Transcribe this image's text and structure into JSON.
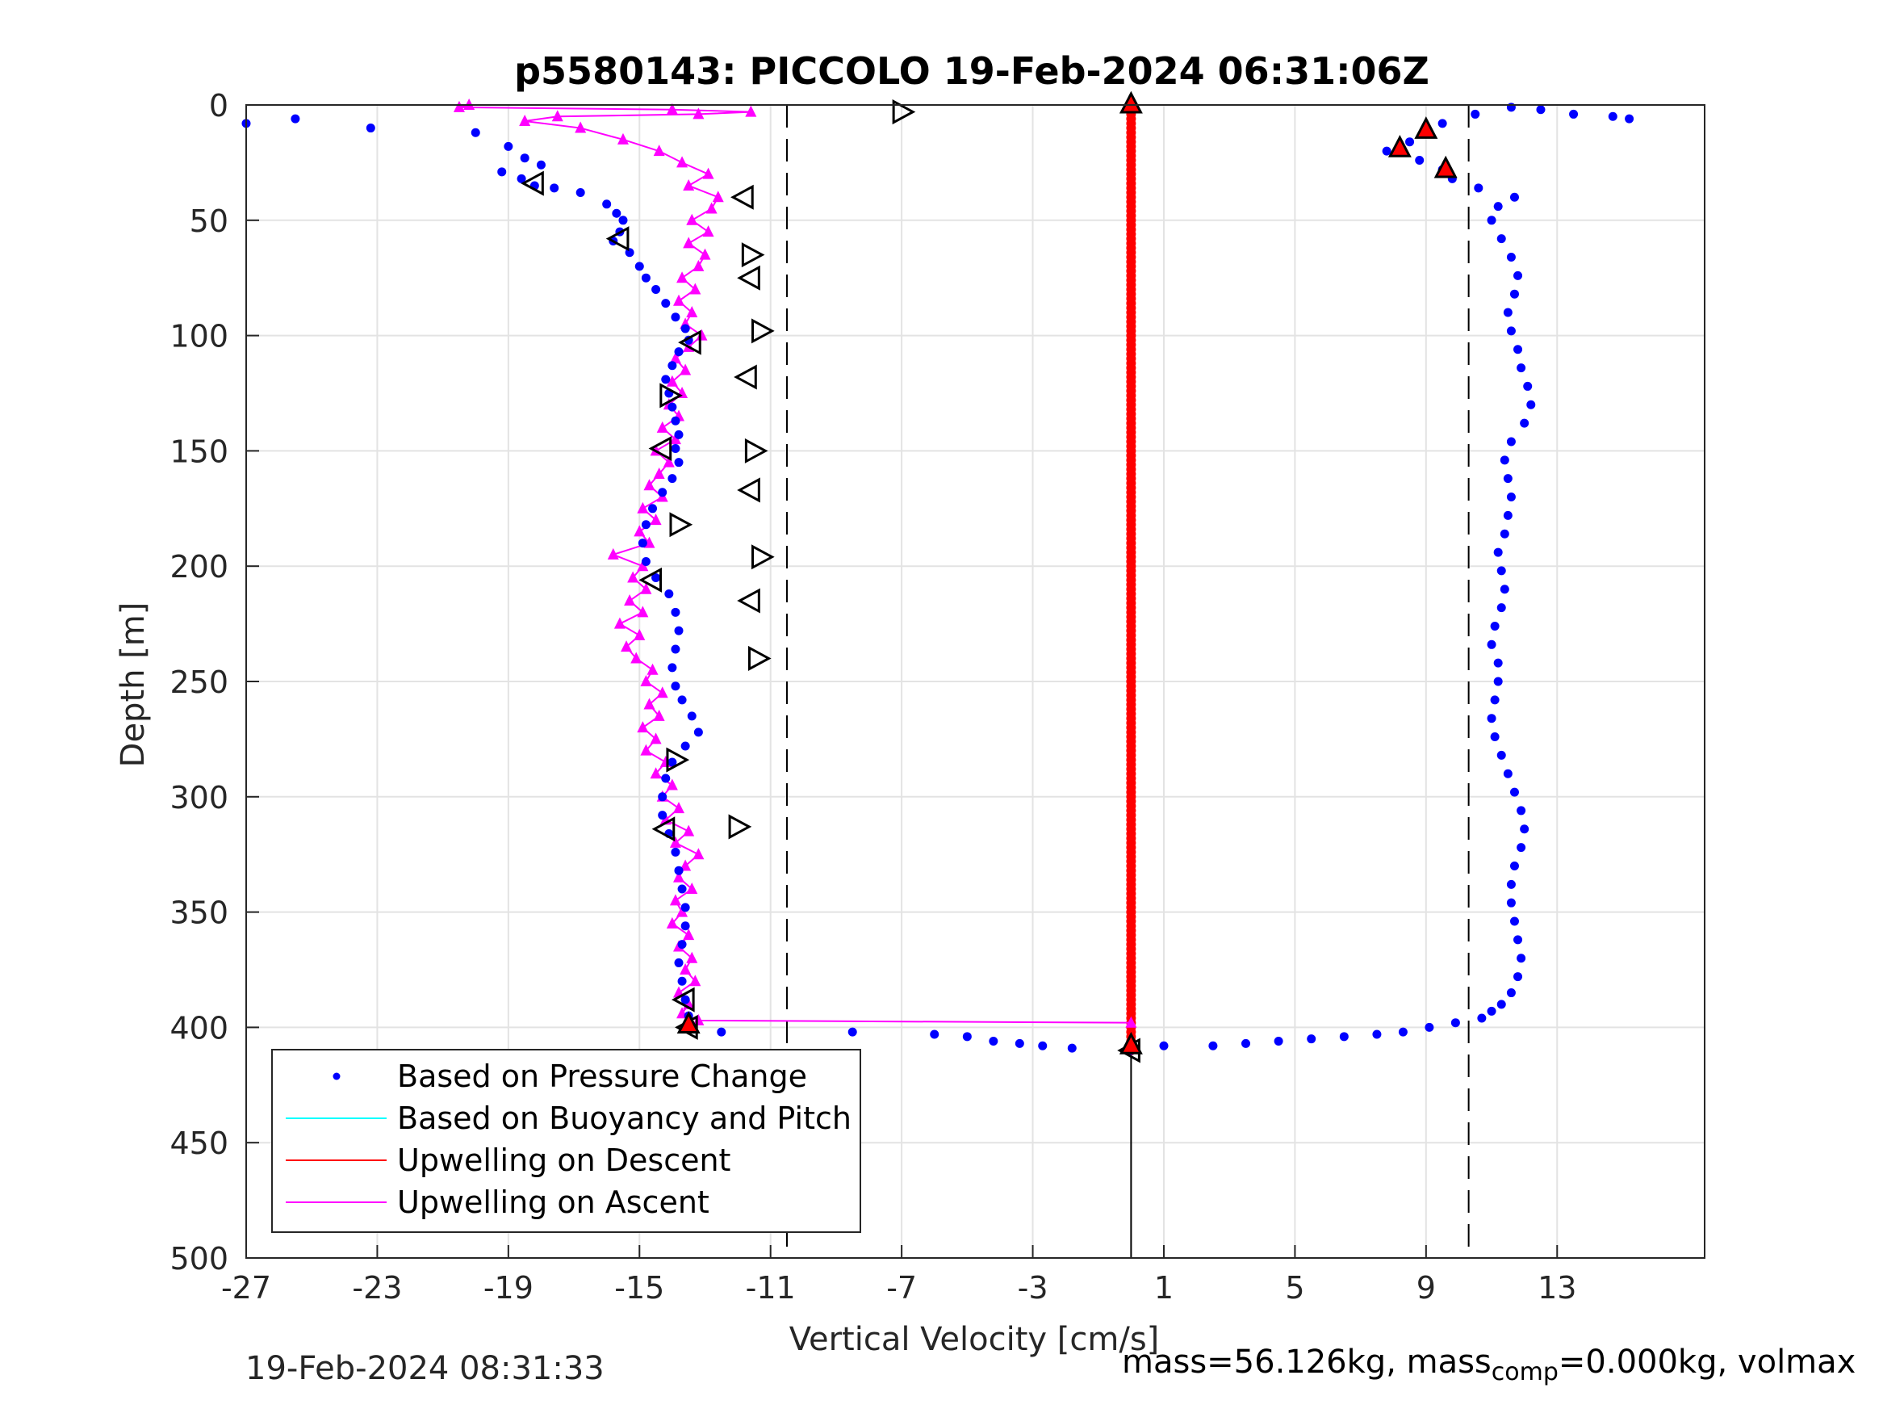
{
  "chart_data": {
    "type": "scatter",
    "title": "p5580143: PICCOLO 19-Feb-2024 06:31:06Z",
    "xlabel": "Vertical Velocity [cm/s]",
    "ylabel": "Depth [m]",
    "xlim": [
      -27,
      17.5
    ],
    "ylim": [
      0,
      500
    ],
    "y_reversed": true,
    "xticks": [
      "-27",
      "-23",
      "-19",
      "-15",
      "-11",
      "-7",
      "-3",
      "1",
      "5",
      "9",
      "13"
    ],
    "xtick_values": [
      -27,
      -23,
      -19,
      -15,
      -11,
      -7,
      -3,
      1,
      5,
      9,
      13
    ],
    "yticks": [
      "0",
      "50",
      "100",
      "150",
      "200",
      "250",
      "300",
      "350",
      "400",
      "450",
      "500"
    ],
    "ytick_values": [
      0,
      50,
      100,
      150,
      200,
      250,
      300,
      350,
      400,
      450,
      500
    ],
    "grid": true,
    "legend_position": "bottom-left",
    "reference_lines": [
      {
        "x": -10.5,
        "style": "dashed"
      },
      {
        "x": 10.3,
        "style": "dashed"
      },
      {
        "x": 0,
        "style": "solid",
        "ylim": [
          400,
          500
        ]
      }
    ],
    "series": [
      {
        "name": "Based on Pressure Change",
        "color": "#0000ff",
        "marker": "dot",
        "descent": [
          [
            -27,
            8
          ],
          [
            -25.5,
            6
          ],
          [
            -23.2,
            10
          ],
          [
            -20,
            12
          ],
          [
            -19,
            18
          ],
          [
            -18.5,
            23
          ],
          [
            -18,
            26
          ],
          [
            -19.2,
            29
          ],
          [
            -18.6,
            32
          ],
          [
            -18.2,
            35
          ],
          [
            -17.6,
            36
          ],
          [
            -16.8,
            38
          ],
          [
            -16,
            43
          ],
          [
            -15.7,
            47
          ],
          [
            -15.5,
            50
          ],
          [
            -15.6,
            55
          ],
          [
            -15.8,
            59
          ],
          [
            -15.3,
            64
          ],
          [
            -15,
            70
          ],
          [
            -14.8,
            75
          ],
          [
            -14.5,
            80
          ],
          [
            -14.2,
            86
          ],
          [
            -13.9,
            92
          ],
          [
            -13.6,
            97
          ],
          [
            -13.5,
            102
          ],
          [
            -13.8,
            107
          ],
          [
            -14,
            113
          ],
          [
            -14.2,
            119
          ],
          [
            -14.1,
            125
          ],
          [
            -14,
            131
          ],
          [
            -13.9,
            137
          ],
          [
            -13.8,
            143
          ],
          [
            -13.9,
            149
          ],
          [
            -13.8,
            155
          ],
          [
            -14,
            162
          ],
          [
            -14.3,
            168
          ],
          [
            -14.6,
            175
          ],
          [
            -14.8,
            182
          ],
          [
            -14.9,
            190
          ],
          [
            -14.8,
            198
          ],
          [
            -14.5,
            205
          ],
          [
            -14.1,
            212
          ],
          [
            -13.9,
            220
          ],
          [
            -13.8,
            228
          ],
          [
            -13.9,
            236
          ],
          [
            -14,
            244
          ],
          [
            -13.9,
            252
          ],
          [
            -13.7,
            258
          ],
          [
            -13.4,
            265
          ],
          [
            -13.2,
            272
          ],
          [
            -13.6,
            278
          ],
          [
            -14,
            285
          ],
          [
            -14.2,
            292
          ],
          [
            -14.3,
            300
          ],
          [
            -14.3,
            308
          ],
          [
            -14.1,
            316
          ],
          [
            -13.9,
            324
          ],
          [
            -13.8,
            332
          ],
          [
            -13.7,
            340
          ],
          [
            -13.6,
            348
          ],
          [
            -13.6,
            356
          ],
          [
            -13.7,
            364
          ],
          [
            -13.8,
            372
          ],
          [
            -13.7,
            380
          ],
          [
            -13.6,
            388
          ],
          [
            -13.5,
            395
          ],
          [
            -13.4,
            400
          ],
          [
            -12.5,
            402
          ],
          [
            -8.5,
            402
          ],
          [
            -6,
            403
          ],
          [
            -5,
            404
          ],
          [
            -4.2,
            406
          ],
          [
            -3.4,
            407
          ],
          [
            -2.7,
            408
          ],
          [
            -1.8,
            409
          ],
          [
            0,
            410
          ]
        ],
        "ascent": [
          [
            1,
            408
          ],
          [
            2.5,
            408
          ],
          [
            3.5,
            407
          ],
          [
            4.5,
            406
          ],
          [
            5.5,
            405
          ],
          [
            6.5,
            404
          ],
          [
            7.5,
            403
          ],
          [
            8.3,
            402
          ],
          [
            9.1,
            400
          ],
          [
            9.9,
            398
          ],
          [
            10.7,
            396
          ],
          [
            11,
            393
          ],
          [
            11.3,
            390
          ],
          [
            11.6,
            385
          ],
          [
            11.8,
            378
          ],
          [
            11.9,
            370
          ],
          [
            11.8,
            362
          ],
          [
            11.7,
            354
          ],
          [
            11.6,
            346
          ],
          [
            11.6,
            338
          ],
          [
            11.7,
            330
          ],
          [
            11.9,
            322
          ],
          [
            12,
            314
          ],
          [
            11.9,
            306
          ],
          [
            11.7,
            298
          ],
          [
            11.5,
            290
          ],
          [
            11.3,
            282
          ],
          [
            11.1,
            274
          ],
          [
            11,
            266
          ],
          [
            11.1,
            258
          ],
          [
            11.2,
            250
          ],
          [
            11.2,
            242
          ],
          [
            11,
            234
          ],
          [
            11.1,
            226
          ],
          [
            11.3,
            218
          ],
          [
            11.4,
            210
          ],
          [
            11.3,
            202
          ],
          [
            11.2,
            194
          ],
          [
            11.4,
            186
          ],
          [
            11.5,
            178
          ],
          [
            11.6,
            170
          ],
          [
            11.5,
            162
          ],
          [
            11.4,
            154
          ],
          [
            11.6,
            146
          ],
          [
            12,
            138
          ],
          [
            12.2,
            130
          ],
          [
            12.1,
            122
          ],
          [
            11.9,
            114
          ],
          [
            11.8,
            106
          ],
          [
            11.6,
            98
          ],
          [
            11.5,
            90
          ],
          [
            11.7,
            82
          ],
          [
            11.8,
            74
          ],
          [
            11.6,
            66
          ],
          [
            11.3,
            58
          ],
          [
            11,
            50
          ],
          [
            11.2,
            44
          ],
          [
            11.7,
            40
          ],
          [
            10.6,
            36
          ],
          [
            9.8,
            32
          ],
          [
            9.5,
            28
          ],
          [
            8.8,
            24
          ],
          [
            7.8,
            20
          ],
          [
            8.5,
            16
          ],
          [
            9,
            12
          ],
          [
            9.5,
            8
          ],
          [
            10.5,
            4
          ],
          [
            11.6,
            1
          ],
          [
            12.5,
            2
          ],
          [
            13.5,
            4
          ],
          [
            14.7,
            5
          ],
          [
            15.2,
            6
          ]
        ]
      },
      {
        "name": "Based on Buoyancy and Pitch",
        "color": "#00ffff",
        "marker": "line",
        "points": []
      },
      {
        "name": "Upwelling on Descent",
        "color": "#ff0000",
        "marker": "line",
        "x": 0,
        "depth_range": [
          0,
          410
        ]
      },
      {
        "name": "Upwelling on Ascent",
        "color": "#ff00ff",
        "marker": "triangle",
        "points": [
          [
            0,
            398
          ],
          [
            -13.2,
            397
          ],
          [
            -13.7,
            394
          ],
          [
            -13.5,
            390
          ],
          [
            -13.8,
            385
          ],
          [
            -13.3,
            380
          ],
          [
            -13.6,
            375
          ],
          [
            -13.4,
            370
          ],
          [
            -13.8,
            365
          ],
          [
            -13.5,
            360
          ],
          [
            -14,
            355
          ],
          [
            -13.7,
            350
          ],
          [
            -13.9,
            345
          ],
          [
            -13.4,
            340
          ],
          [
            -13.8,
            335
          ],
          [
            -13.6,
            330
          ],
          [
            -13.2,
            325
          ],
          [
            -13.9,
            320
          ],
          [
            -13.5,
            315
          ],
          [
            -14.2,
            310
          ],
          [
            -13.8,
            305
          ],
          [
            -14.3,
            300
          ],
          [
            -14,
            295
          ],
          [
            -14.5,
            290
          ],
          [
            -14.2,
            285
          ],
          [
            -14.8,
            280
          ],
          [
            -14.5,
            275
          ],
          [
            -14.9,
            270
          ],
          [
            -14.4,
            265
          ],
          [
            -14.7,
            260
          ],
          [
            -14.3,
            255
          ],
          [
            -14.8,
            250
          ],
          [
            -14.6,
            245
          ],
          [
            -15.1,
            240
          ],
          [
            -15.4,
            235
          ],
          [
            -15,
            230
          ],
          [
            -15.6,
            225
          ],
          [
            -14.9,
            220
          ],
          [
            -15.3,
            215
          ],
          [
            -14.8,
            210
          ],
          [
            -15.2,
            205
          ],
          [
            -14.9,
            200
          ],
          [
            -15.8,
            195
          ],
          [
            -14.7,
            190
          ],
          [
            -15,
            185
          ],
          [
            -14.5,
            180
          ],
          [
            -14.9,
            175
          ],
          [
            -14.3,
            170
          ],
          [
            -14.7,
            165
          ],
          [
            -14.4,
            160
          ],
          [
            -14.1,
            155
          ],
          [
            -14.5,
            150
          ],
          [
            -13.9,
            145
          ],
          [
            -14.3,
            140
          ],
          [
            -13.8,
            135
          ],
          [
            -14.1,
            130
          ],
          [
            -13.7,
            125
          ],
          [
            -14,
            120
          ],
          [
            -13.6,
            115
          ],
          [
            -13.9,
            110
          ],
          [
            -13.5,
            105
          ],
          [
            -13.1,
            100
          ],
          [
            -13.6,
            95
          ],
          [
            -13.4,
            90
          ],
          [
            -13.8,
            85
          ],
          [
            -13.3,
            80
          ],
          [
            -13.7,
            75
          ],
          [
            -13.2,
            70
          ],
          [
            -13,
            65
          ],
          [
            -13.5,
            60
          ],
          [
            -12.9,
            55
          ],
          [
            -13.4,
            50
          ],
          [
            -12.8,
            45
          ],
          [
            -12.6,
            40
          ],
          [
            -13.5,
            35
          ],
          [
            -12.9,
            30
          ],
          [
            -13.7,
            25
          ],
          [
            -14.4,
            20
          ],
          [
            -15.5,
            15
          ],
          [
            -16.8,
            10
          ],
          [
            -18.5,
            7
          ],
          [
            -17.5,
            5
          ],
          [
            -13.2,
            4
          ],
          [
            -11.6,
            3
          ],
          [
            -14,
            2
          ],
          [
            -20.5,
            1
          ],
          [
            -20.2,
            0
          ]
        ]
      }
    ],
    "markers": [
      {
        "shape": "triangle-right",
        "points": [
          [
            -7,
            3
          ],
          [
            -14.1,
            126
          ],
          [
            -13.8,
            182
          ],
          [
            -11.3,
            196
          ],
          [
            -13.9,
            284
          ],
          [
            -11.4,
            240
          ],
          [
            -11.5,
            150
          ],
          [
            -11.6,
            65
          ],
          [
            -11.3,
            98
          ],
          [
            -12,
            313
          ]
        ]
      },
      {
        "shape": "triangle-left",
        "points": [
          [
            -18.2,
            34
          ],
          [
            -15.6,
            58
          ],
          [
            -13.4,
            103
          ],
          [
            -14.3,
            149
          ],
          [
            -14.6,
            206
          ],
          [
            -14.2,
            314
          ],
          [
            -13.6,
            388
          ],
          [
            -11.8,
            40
          ],
          [
            -11.6,
            75
          ],
          [
            -11.7,
            118
          ],
          [
            -11.6,
            167
          ],
          [
            -11.6,
            215
          ],
          [
            -13.5,
            400
          ],
          [
            0,
            410
          ]
        ]
      },
      {
        "shape": "red-triangle",
        "points": [
          [
            -13.5,
            399
          ],
          [
            0,
            408
          ],
          [
            8.2,
            19
          ],
          [
            9.6,
            28
          ],
          [
            9,
            11
          ],
          [
            0,
            0
          ]
        ]
      }
    ]
  },
  "footer": {
    "timestamp": "19-Feb-2024 08:31:33",
    "mass_text": "mass=56.126kg, mass",
    "mass_sub": "comp",
    "mass_tail": "=0.000kg, volmax"
  }
}
